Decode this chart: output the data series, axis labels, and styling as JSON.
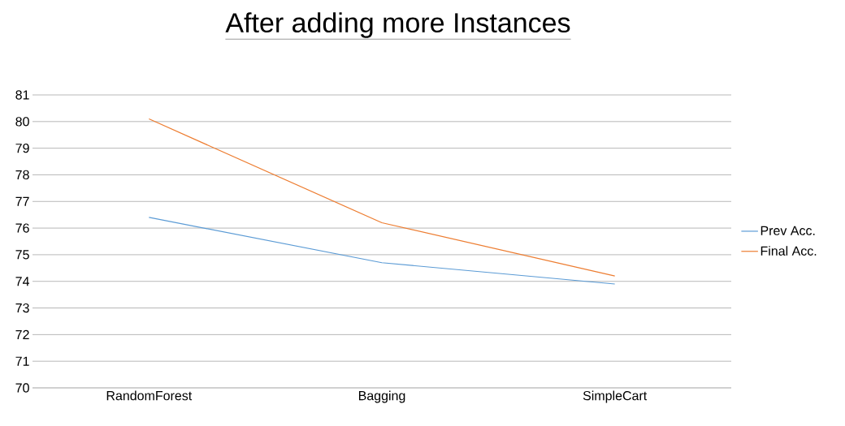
{
  "chart_data": {
    "type": "line",
    "title": "After adding more Instances",
    "categories": [
      "RandomForest",
      "Bagging",
      "SimpleCart"
    ],
    "series": [
      {
        "name": "Prev Acc.",
        "color": "#5b9bd5",
        "values": [
          76.4,
          74.7,
          73.9
        ]
      },
      {
        "name": "Final Acc.",
        "color": "#ed7d31",
        "values": [
          80.1,
          76.2,
          74.2
        ]
      }
    ],
    "ylim": [
      70,
      81
    ],
    "yticks": [
      70,
      71,
      72,
      73,
      74,
      75,
      76,
      77,
      78,
      79,
      80,
      81
    ],
    "grid": "y",
    "legend": "right",
    "marker": "none",
    "line_style": "solid"
  }
}
